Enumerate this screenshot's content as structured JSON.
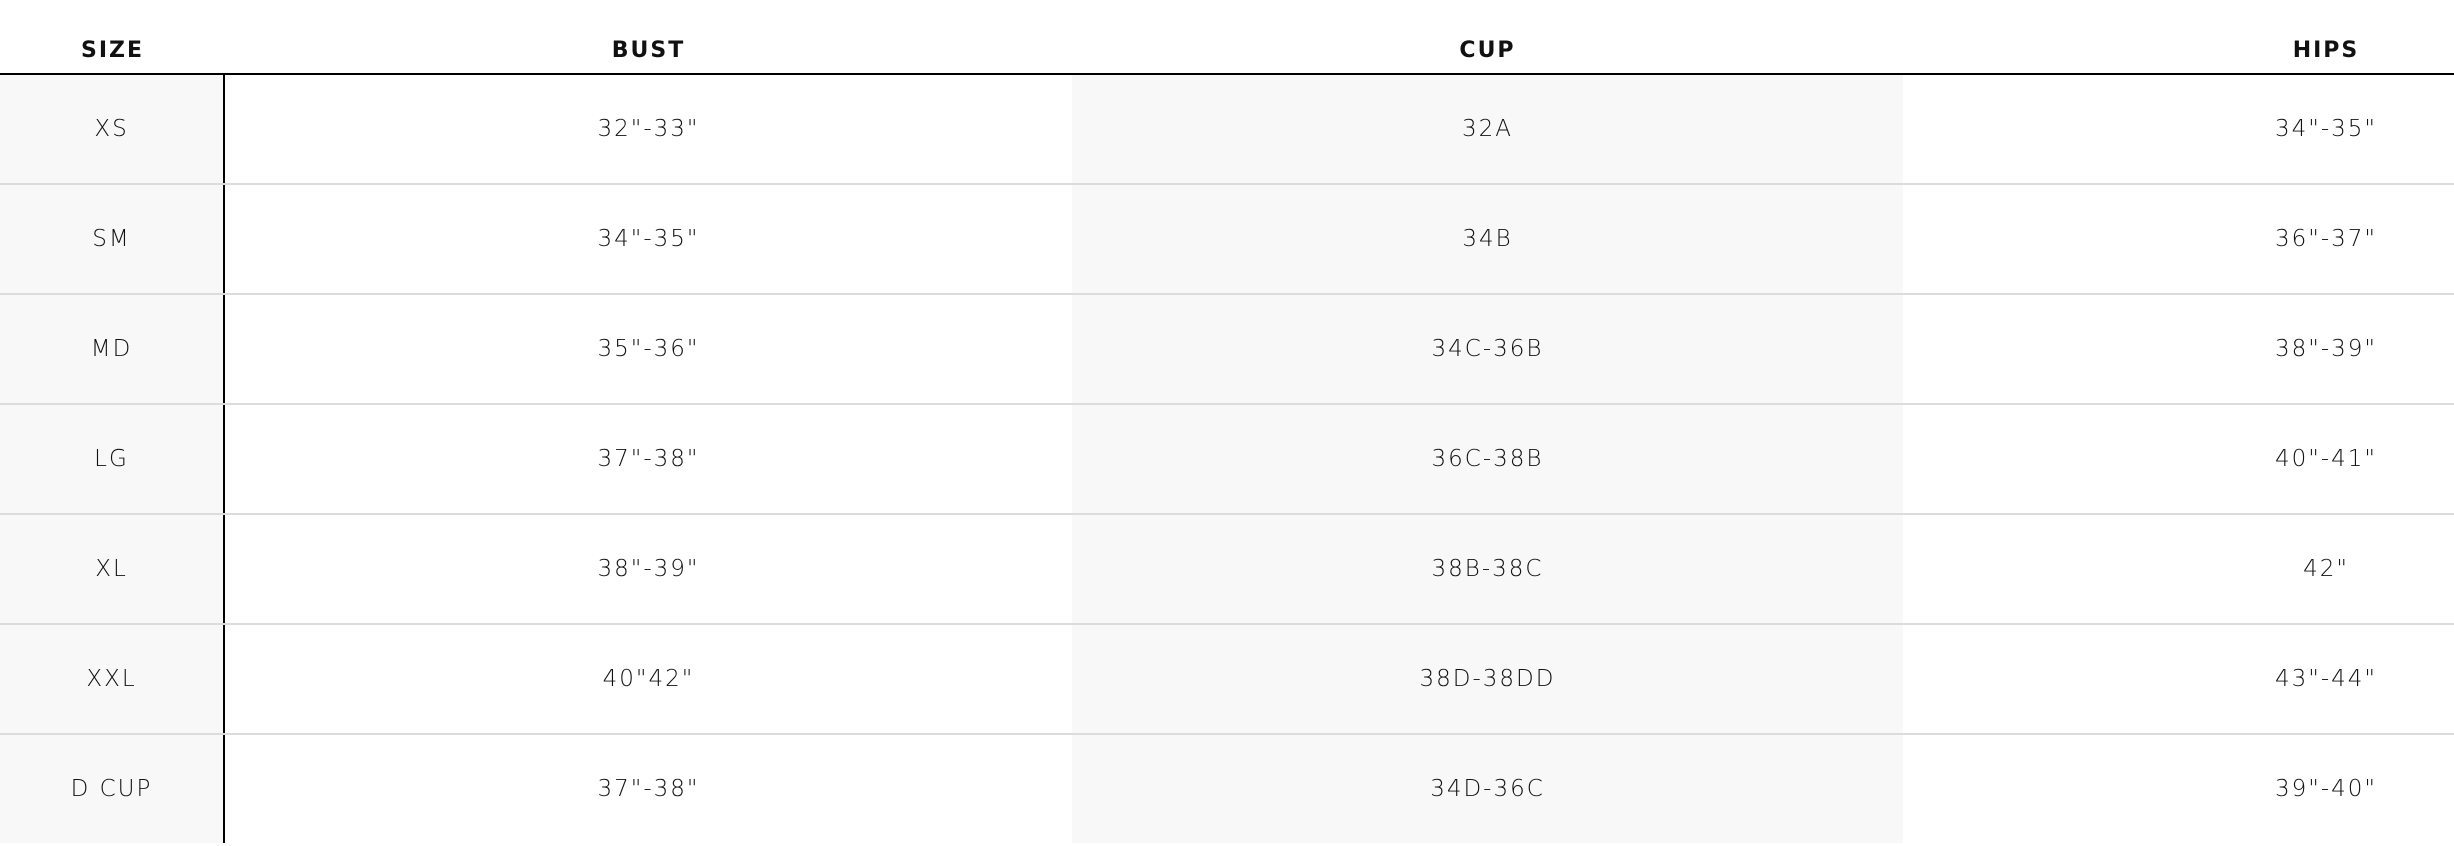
{
  "headers": [
    "SIZE",
    "BUST",
    "CUP",
    "HIPS"
  ],
  "rows": [
    [
      "XS",
      "32\"-33\"",
      "32A",
      "34\"-35\""
    ],
    [
      "SM",
      "34\"-35\"",
      "34B",
      "36\"-37\""
    ],
    [
      "MD",
      "35\"-36\"",
      "34C-36B",
      "38\"-39\""
    ],
    [
      "LG",
      "37\"-38\"",
      "36C-38B",
      "40\"-41\""
    ],
    [
      "XL",
      "38\"-39\"",
      "38B-38C",
      "42\""
    ],
    [
      "XXL",
      "40\"42\"",
      "38D-38DD",
      "43\"-44\""
    ],
    [
      "D CUP",
      "37\"-38\"",
      "34D-36C",
      "39\"-40\""
    ]
  ]
}
